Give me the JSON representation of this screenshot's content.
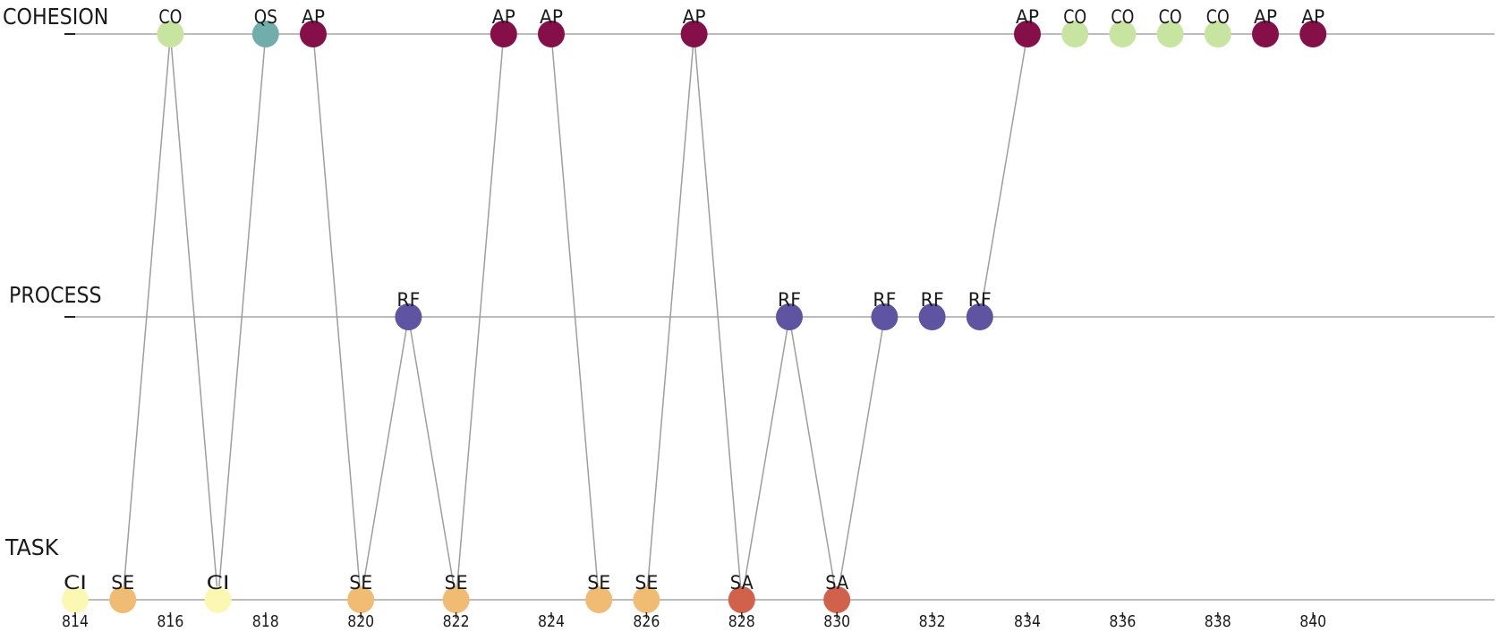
{
  "chart_data": {
    "type": "scatter",
    "title": "",
    "xlabel": "",
    "ylabel": "",
    "xlim": [
      814,
      842
    ],
    "x_ticks": [
      814,
      816,
      818,
      820,
      822,
      824,
      826,
      828,
      830,
      832,
      834,
      836,
      838,
      840
    ],
    "grid": false,
    "lanes": [
      "COHESION",
      "PROCESS",
      "TASK"
    ],
    "colors": {
      "CO": "#c7e5a1",
      "QS": "#71aeab",
      "AP": "#850f48",
      "RF": "#5e54a2",
      "CI": "#fbf8b3",
      "SE": "#f0bc74",
      "SA": "#d0614b"
    },
    "points": [
      {
        "x": 814,
        "lane": "TASK",
        "code": "CI"
      },
      {
        "x": 815,
        "lane": "TASK",
        "code": "SE"
      },
      {
        "x": 816,
        "lane": "COHESION",
        "code": "CO"
      },
      {
        "x": 817,
        "lane": "TASK",
        "code": "CI"
      },
      {
        "x": 818,
        "lane": "COHESION",
        "code": "QS"
      },
      {
        "x": 819,
        "lane": "COHESION",
        "code": "AP"
      },
      {
        "x": 820,
        "lane": "TASK",
        "code": "SE"
      },
      {
        "x": 821,
        "lane": "PROCESS",
        "code": "RF"
      },
      {
        "x": 822,
        "lane": "TASK",
        "code": "SE"
      },
      {
        "x": 823,
        "lane": "COHESION",
        "code": "AP"
      },
      {
        "x": 824,
        "lane": "COHESION",
        "code": "AP"
      },
      {
        "x": 825,
        "lane": "TASK",
        "code": "SE"
      },
      {
        "x": 826,
        "lane": "TASK",
        "code": "SE"
      },
      {
        "x": 827,
        "lane": "COHESION",
        "code": "AP"
      },
      {
        "x": 828,
        "lane": "TASK",
        "code": "SA"
      },
      {
        "x": 829,
        "lane": "PROCESS",
        "code": "RF"
      },
      {
        "x": 830,
        "lane": "TASK",
        "code": "SA"
      },
      {
        "x": 831,
        "lane": "PROCESS",
        "code": "RF"
      },
      {
        "x": 832,
        "lane": "PROCESS",
        "code": "RF"
      },
      {
        "x": 833,
        "lane": "PROCESS",
        "code": "RF"
      },
      {
        "x": 834,
        "lane": "COHESION",
        "code": "AP"
      },
      {
        "x": 835,
        "lane": "COHESION",
        "code": "CO"
      },
      {
        "x": 836,
        "lane": "COHESION",
        "code": "CO"
      },
      {
        "x": 837,
        "lane": "COHESION",
        "code": "CO"
      },
      {
        "x": 838,
        "lane": "COHESION",
        "code": "CO"
      },
      {
        "x": 839,
        "lane": "COHESION",
        "code": "AP"
      },
      {
        "x": 840,
        "lane": "COHESION",
        "code": "AP"
      }
    ]
  }
}
